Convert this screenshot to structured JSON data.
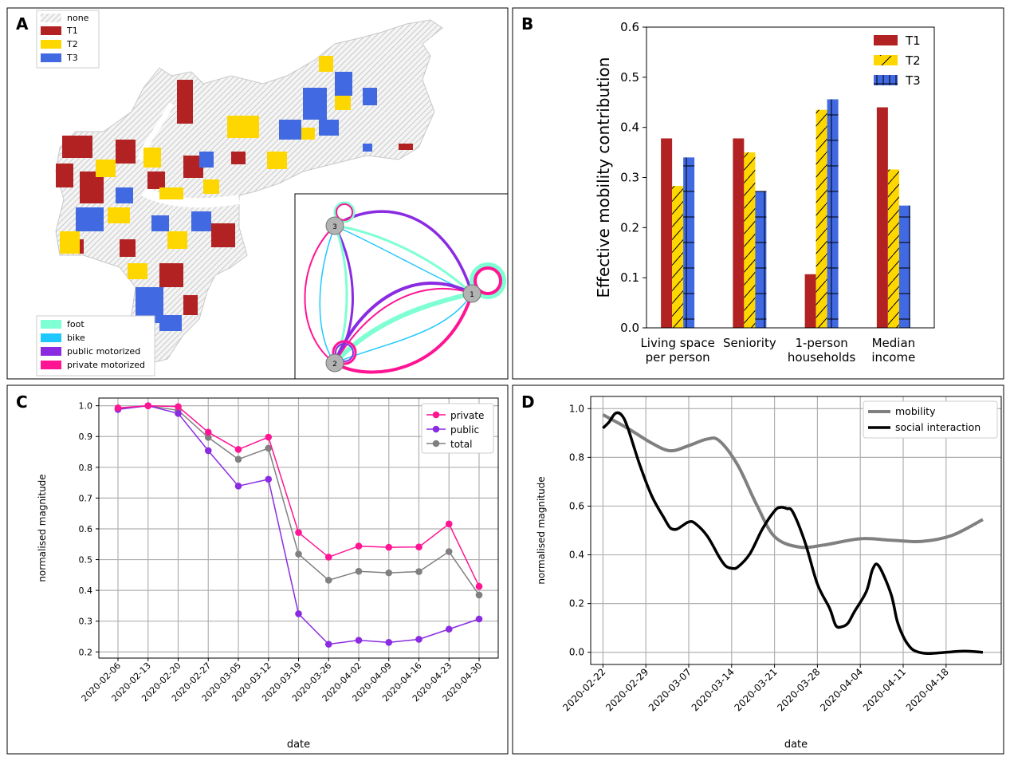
{
  "panels": {
    "A": {
      "letter": "A",
      "legend_top": [
        {
          "label": "none",
          "color": "#d9d9d9",
          "hatch": true
        },
        {
          "label": "T1",
          "color": "#b22222"
        },
        {
          "label": "T2",
          "color": "#ffd700"
        },
        {
          "label": "T3",
          "color": "#4169e1"
        }
      ],
      "legend_bottom": [
        {
          "label": "foot",
          "color": "#7fffd4"
        },
        {
          "label": "bike",
          "color": "#1ec8ff"
        },
        {
          "label": "public motorized",
          "color": "#8a2be2"
        },
        {
          "label": "private motorized",
          "color": "#ff1493"
        }
      ],
      "network_nodes": [
        "1",
        "2",
        "3"
      ]
    },
    "B": {
      "letter": "B"
    },
    "C": {
      "letter": "C"
    },
    "D": {
      "letter": "D"
    }
  },
  "chart_data": [
    {
      "panel": "B",
      "type": "bar",
      "title": "",
      "xlabel": "",
      "ylabel": "Effective mobility contribution",
      "ylim": [
        0,
        0.6
      ],
      "yticks": [
        "0.0",
        "0.1",
        "0.2",
        "0.3",
        "0.4",
        "0.5",
        "0.6"
      ],
      "categories": [
        "Living space\nper person",
        "Seniority",
        "1-person\nhouseholds",
        "Median\nincome"
      ],
      "series": [
        {
          "name": "T1",
          "color": "#b22222",
          "values": [
            0.378,
            0.378,
            0.107,
            0.44
          ]
        },
        {
          "name": "T2",
          "color": "#ffd700",
          "values": [
            0.283,
            0.35,
            0.435,
            0.316
          ]
        },
        {
          "name": "T3",
          "color": "#4169e1",
          "values": [
            0.34,
            0.273,
            0.456,
            0.244
          ]
        }
      ],
      "legend": "top-right",
      "grid": false
    },
    {
      "panel": "C",
      "type": "line",
      "title": "",
      "xlabel": "date",
      "ylabel": "normalised magnitude",
      "ylim": [
        0.2,
        1.0
      ],
      "yticks": [
        "0.2",
        "0.3",
        "0.4",
        "0.5",
        "0.6",
        "0.7",
        "0.8",
        "0.9",
        "1.0"
      ],
      "x": [
        "2020-02-06",
        "2020-02-13",
        "2020-02-20",
        "2020-02-27",
        "2020-03-05",
        "2020-03-12",
        "2020-03-19",
        "2020-03-26",
        "2020-04-02",
        "2020-04-09",
        "2020-04-16",
        "2020-04-23",
        "2020-04-30"
      ],
      "series": [
        {
          "name": "private",
          "color": "#ff1493",
          "values": [
            0.993,
            1.0,
            0.997,
            0.914,
            0.858,
            0.898,
            0.588,
            0.508,
            0.544,
            0.54,
            0.541,
            0.616,
            0.413
          ]
        },
        {
          "name": "public",
          "color": "#8a2be2",
          "values": [
            0.988,
            1.0,
            0.975,
            0.854,
            0.739,
            0.761,
            0.324,
            0.225,
            0.238,
            0.231,
            0.241,
            0.274,
            0.307
          ]
        },
        {
          "name": "total",
          "color": "#808080",
          "values": [
            0.99,
            1.0,
            0.985,
            0.897,
            0.826,
            0.862,
            0.518,
            0.433,
            0.462,
            0.457,
            0.461,
            0.526,
            0.385
          ]
        }
      ],
      "legend": "top-right",
      "grid": true
    },
    {
      "panel": "D",
      "type": "line",
      "title": "",
      "xlabel": "date",
      "ylabel": "normalised magnitude",
      "ylim": [
        -0.05,
        1.05
      ],
      "yticks": [
        "0.0",
        "0.2",
        "0.4",
        "0.6",
        "0.8",
        "1.0"
      ],
      "xticks": [
        "2020-02-22",
        "2020-02-29",
        "2020-03-07",
        "2020-03-14",
        "2020-03-21",
        "2020-03-28",
        "2020-04-04",
        "2020-04-11",
        "2020-04-18"
      ],
      "series": [
        {
          "name": "mobility",
          "color": "#808080",
          "x": [
            "2020-02-22",
            "2020-02-26",
            "2020-03-01",
            "2020-03-04",
            "2020-03-07",
            "2020-03-10",
            "2020-03-12",
            "2020-03-15",
            "2020-03-18",
            "2020-03-21",
            "2020-03-25",
            "2020-03-29",
            "2020-04-04",
            "2020-04-09",
            "2020-04-14",
            "2020-04-19",
            "2020-04-24"
          ],
          "values": [
            0.975,
            0.92,
            0.858,
            0.827,
            0.848,
            0.875,
            0.868,
            0.768,
            0.61,
            0.475,
            0.432,
            0.44,
            0.466,
            0.46,
            0.455,
            0.48,
            0.545
          ]
        },
        {
          "name": "social interaction",
          "color": "#000000",
          "x": [
            "2020-02-22",
            "2020-02-23",
            "2020-02-24",
            "2020-02-25",
            "2020-02-26",
            "2020-02-28",
            "2020-03-01",
            "2020-03-03",
            "2020-03-04",
            "2020-03-05",
            "2020-03-06",
            "2020-03-07",
            "2020-03-08",
            "2020-03-10",
            "2020-03-12",
            "2020-03-13",
            "2020-03-14",
            "2020-03-15",
            "2020-03-17",
            "2020-03-19",
            "2020-03-21",
            "2020-03-22",
            "2020-03-23",
            "2020-03-24",
            "2020-03-26",
            "2020-03-28",
            "2020-03-30",
            "2020-03-31",
            "2020-04-01",
            "2020-04-02",
            "2020-04-03",
            "2020-04-05",
            "2020-04-06",
            "2020-04-07",
            "2020-04-09",
            "2020-04-10",
            "2020-04-11",
            "2020-04-12",
            "2020-04-13",
            "2020-04-15",
            "2020-04-18",
            "2020-04-21",
            "2020-04-24"
          ],
          "values": [
            0.92,
            0.945,
            0.98,
            0.975,
            0.925,
            0.77,
            0.64,
            0.55,
            0.51,
            0.505,
            0.52,
            0.535,
            0.53,
            0.478,
            0.39,
            0.355,
            0.345,
            0.35,
            0.405,
            0.505,
            0.58,
            0.595,
            0.59,
            0.575,
            0.45,
            0.28,
            0.18,
            0.11,
            0.105,
            0.12,
            0.165,
            0.25,
            0.34,
            0.355,
            0.24,
            0.13,
            0.065,
            0.025,
            0.005,
            -0.005,
            0.0,
            0.005,
            0.0
          ]
        }
      ],
      "legend": "top-right",
      "grid": true
    }
  ]
}
